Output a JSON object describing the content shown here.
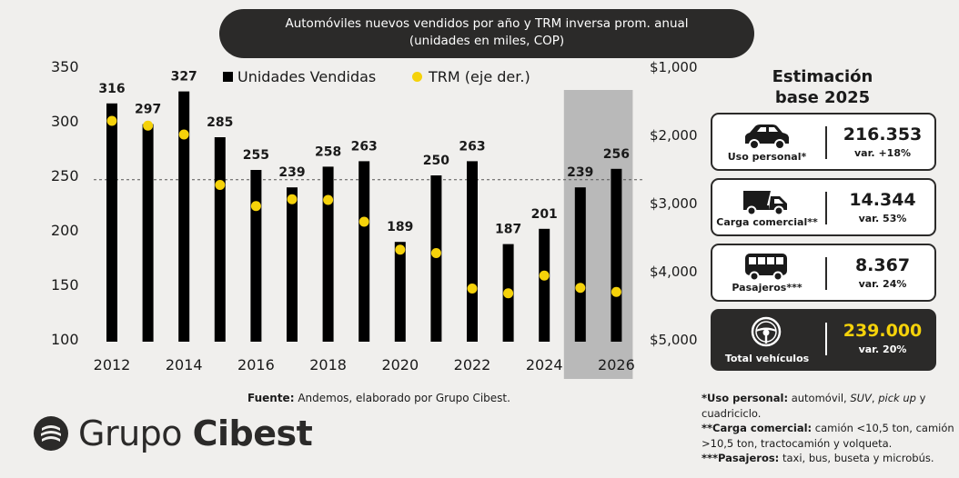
{
  "title": {
    "line1": "Automóviles nuevos vendidos por año y TRM inversa prom. anual",
    "line2": "(unidades en miles, COP)"
  },
  "chart_data": {
    "type": "bar",
    "categories": [
      "2012",
      "2013",
      "2014",
      "2015",
      "2016",
      "2017",
      "2018",
      "2019",
      "2020",
      "2021",
      "2022",
      "2023",
      "2024",
      "2025",
      "2026"
    ],
    "series": [
      {
        "name": "Unidades Vendidas",
        "values": [
          316,
          297,
          327,
          285,
          255,
          239,
          258,
          263,
          189,
          250,
          263,
          187,
          201,
          239,
          256
        ]
      },
      {
        "name": "TRM (eje der.)",
        "values": [
          1800,
          1870,
          2000,
          2740,
          3050,
          2950,
          2960,
          3280,
          3690,
          3740,
          4260,
          4330,
          4070,
          4250,
          4310
        ]
      }
    ],
    "value_labels": [
      "316",
      "297",
      "327",
      "285",
      "255",
      "239",
      "258",
      "263",
      "189",
      "250",
      "263",
      "187",
      "201",
      "239",
      "256"
    ],
    "x_tick_labels": [
      "2012",
      "2014",
      "2016",
      "2018",
      "2020",
      "2022",
      "2024",
      "2026"
    ],
    "y_left": {
      "ylim": [
        100,
        350
      ],
      "ticks": [
        "100",
        "150",
        "200",
        "250",
        "300",
        "350"
      ]
    },
    "y_right": {
      "ylim": [
        1000,
        5000
      ],
      "inverted": true,
      "ticks": [
        "$1,000",
        "$2,000",
        "$3,000",
        "$4,000",
        "$5,000"
      ]
    },
    "reference_line_value": 246,
    "projection_categories": [
      "2025",
      "2026"
    ],
    "legend": [
      "Unidades Vendidas",
      "TRM (eje der.)"
    ],
    "colors": {
      "bars": "#000000",
      "dots": "#f5d20a",
      "projection_band": "#b9b9b9"
    }
  },
  "source": {
    "label": "Fuente:",
    "text": " Andemos, elaborado por Grupo Cibest."
  },
  "logo": {
    "word1": "Grupo",
    "word2": "Cibest"
  },
  "estimate": {
    "title_line1": "Estimación",
    "title_line2": "base 2025",
    "cards": [
      {
        "icon": "car-icon",
        "label": "Uso personal*",
        "value": "216.353",
        "var": "var. +18%"
      },
      {
        "icon": "truck-icon",
        "label": "Carga comercial**",
        "value": "14.344",
        "var": "var. 53%"
      },
      {
        "icon": "bus-icon",
        "label": "Pasajeros***",
        "value": "8.367",
        "var": "var. 24%"
      },
      {
        "icon": "steering-wheel-icon",
        "label": "Total vehículos",
        "value": "239.000",
        "var": "var. 20%"
      }
    ]
  },
  "notes": {
    "n1_label": "*Uso personal:",
    "n1_text_a": " automóvil, ",
    "n1_suv": "SUV",
    "n1_text_b": ", ",
    "n1_pickup": "pick up",
    "n1_text_c": " y cuadriciclo.",
    "n2_label": "**Carga comercial:",
    "n2_text": " camión <10,5 ton, camión >10,5 ton, tractocamión y volqueta.",
    "n3_label": "***Pasajeros:",
    "n3_text": " taxi, bus, buseta y microbús."
  }
}
